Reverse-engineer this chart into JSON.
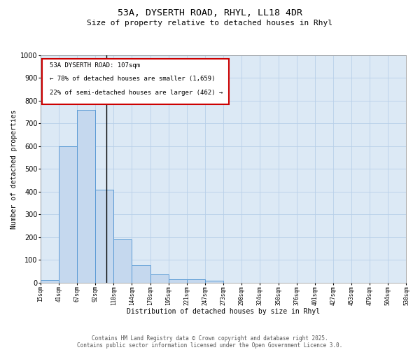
{
  "title_line1": "53A, DYSERTH ROAD, RHYL, LL18 4DR",
  "title_line2": "Size of property relative to detached houses in Rhyl",
  "xlabel": "Distribution of detached houses by size in Rhyl",
  "ylabel": "Number of detached properties",
  "bins": [
    "15sqm",
    "41sqm",
    "67sqm",
    "92sqm",
    "118sqm",
    "144sqm",
    "170sqm",
    "195sqm",
    "221sqm",
    "247sqm",
    "273sqm",
    "298sqm",
    "324sqm",
    "350sqm",
    "376sqm",
    "401sqm",
    "427sqm",
    "453sqm",
    "479sqm",
    "504sqm",
    "530sqm"
  ],
  "bar_heights": [
    12,
    600,
    760,
    410,
    192,
    78,
    37,
    15,
    15,
    10,
    0,
    0,
    0,
    0,
    0,
    0,
    0,
    0,
    0,
    0
  ],
  "bar_color": "#c5d8ee",
  "bar_edge_color": "#5b9bd5",
  "property_line_x": 3.6,
  "property_line_color": "black",
  "annotation_line1": "53A DYSERTH ROAD: 107sqm",
  "annotation_line2": "← 78% of detached houses are smaller (1,659)",
  "annotation_line3": "22% of semi-detached houses are larger (462) →",
  "annotation_box_color": "#cc0000",
  "ylim": [
    0,
    1000
  ],
  "yticks": [
    0,
    100,
    200,
    300,
    400,
    500,
    600,
    700,
    800,
    900,
    1000
  ],
  "grid_color": "#b8cfe8",
  "background_color": "#dce9f5",
  "footer_line1": "Contains HM Land Registry data © Crown copyright and database right 2025.",
  "footer_line2": "Contains public sector information licensed under the Open Government Licence 3.0."
}
